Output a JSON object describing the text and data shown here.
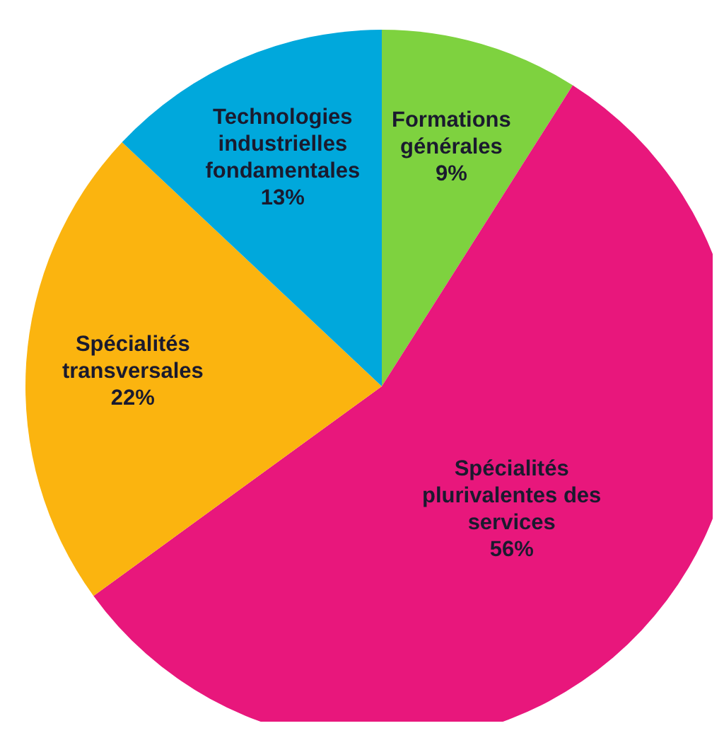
{
  "chart_data": {
    "type": "pie",
    "categories": [
      "Formations générales",
      "Spécialités plurivalentes des services",
      "Spécialités transversales",
      "Technologies industrielles fondamentales"
    ],
    "values": [
      9,
      56,
      22,
      13
    ],
    "value_labels": [
      "9%",
      "56%",
      "22%",
      "13%"
    ],
    "colors": [
      "#7ed23f",
      "#e8177c",
      "#fbb40f",
      "#00a8dc"
    ],
    "legend": false
  }
}
